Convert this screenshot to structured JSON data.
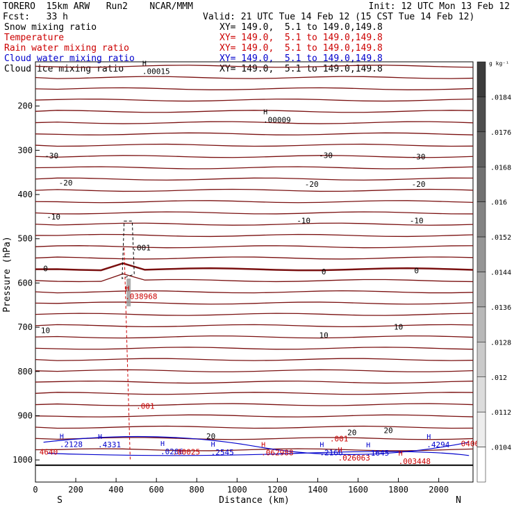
{
  "header": {
    "model": "TORERO  15km ARW   Run2    NCAR/MMM",
    "init": "Init: 12 UTC Mon 13 Feb 12",
    "fcst": "Fcst:   33 h",
    "valid": "Valid: 21 UTC Tue 14 Feb 12 (15 CST Tue 14 Feb 12)"
  },
  "fields": [
    {
      "name": "Snow mixing ratio",
      "xy": "XY= 149.0,  5.1 to 149.0,149.8",
      "color": "#000000"
    },
    {
      "name": "Temperature",
      "xy": "XY= 149.0,  5.1 to 149.0,149.8",
      "color": "#cc0000"
    },
    {
      "name": "Rain water mixing ratio",
      "xy": "XY= 149.0,  5.1 to 149.0,149.8",
      "color": "#cc0000"
    },
    {
      "name": "Cloud water mixing ratio",
      "xy": "XY= 149.0,  5.1 to 149.0,149.8",
      "color": "#0000cc"
    },
    {
      "name": "Cloud ice mixing ratio",
      "xy": "XY= 149.0,  5.1 to 149.0,149.8",
      "color": "#000000"
    }
  ],
  "colorbar": {
    "unit": "g kg⁻¹",
    "ticks": [
      ".0184",
      ".0176",
      ".0168",
      ".016",
      ".0152",
      ".0144",
      ".0136",
      ".0128",
      ".012",
      ".0112",
      ".0104"
    ]
  },
  "chart_data": {
    "type": "contour",
    "xlabel": "Distance (km)",
    "ylabel": "Pressure (hPa)",
    "xlim": [
      0,
      2170
    ],
    "ylim": [
      1050,
      100
    ],
    "x_ticks": [
      0,
      200,
      400,
      600,
      800,
      1000,
      1200,
      1400,
      1600,
      1800,
      2000
    ],
    "y_ticks": [
      200,
      300,
      400,
      500,
      600,
      700,
      800,
      900,
      1000
    ],
    "endpoints": {
      "left": "S",
      "right": "N"
    },
    "temperature_labels": [
      {
        "text": "-30",
        "x": 80,
        "p": 312
      },
      {
        "text": "-30",
        "x": 1440,
        "p": 311
      },
      {
        "text": "-30",
        "x": 1900,
        "p": 314
      },
      {
        "text": "-20",
        "x": 150,
        "p": 373
      },
      {
        "text": "-20",
        "x": 1370,
        "p": 376
      },
      {
        "text": "-20",
        "x": 1900,
        "p": 376
      },
      {
        "text": "-10",
        "x": 90,
        "p": 450
      },
      {
        "text": "-10",
        "x": 1330,
        "p": 459
      },
      {
        "text": "-10",
        "x": 1890,
        "p": 459
      },
      {
        "text": "0",
        "x": 50,
        "p": 567
      },
      {
        "text": "0",
        "x": 1430,
        "p": 574
      },
      {
        "text": "0",
        "x": 1890,
        "p": 572
      },
      {
        "text": "10",
        "x": 50,
        "p": 707
      },
      {
        "text": "10",
        "x": 1430,
        "p": 718
      },
      {
        "text": "10",
        "x": 1800,
        "p": 699
      },
      {
        "text": "20",
        "x": 870,
        "p": 946
      },
      {
        "text": "20",
        "x": 1570,
        "p": 938
      },
      {
        "text": "20",
        "x": 1750,
        "p": 933
      }
    ],
    "extrema": [
      {
        "text": "H",
        "val": ".00015",
        "x": 530,
        "p": 118,
        "color": "#000000"
      },
      {
        "text": "H",
        "val": ".00009",
        "x": 1130,
        "p": 228,
        "color": "#000000"
      },
      {
        "text": "H",
        "val": ".038968",
        "x": 445,
        "p": 627,
        "color": "#cc0000"
      },
      {
        "text": "H",
        "val": ".2128",
        "x": 120,
        "p": 961,
        "color": "#0000cc"
      },
      {
        "text": "H",
        "val": ".4331",
        "x": 310,
        "p": 962,
        "color": "#0000cc"
      },
      {
        "text": "H",
        "val": ".0206",
        "x": 620,
        "p": 978,
        "color": "#0000cc"
      },
      {
        "text": "H",
        "val": ".2545",
        "x": 870,
        "p": 979,
        "color": "#0000cc"
      },
      {
        "text": "H",
        "val": ".062988",
        "x": 1120,
        "p": 980,
        "color": "#cc0000"
      },
      {
        "text": "H",
        "val": ".2166",
        "x": 1410,
        "p": 980,
        "color": "#0000cc"
      },
      {
        "text": "H",
        "val": ".026063",
        "x": 1500,
        "p": 992,
        "color": "#cc0000"
      },
      {
        "text": "H",
        "val": ".1645",
        "x": 1640,
        "p": 981,
        "color": "#0000cc"
      },
      {
        "text": "H",
        "val": ".4294",
        "x": 1940,
        "p": 962,
        "color": "#0000cc"
      },
      {
        "text": "H",
        "val": ".003448",
        "x": 1800,
        "p": 1000,
        "color": "#cc0000"
      }
    ],
    "other_labels": [
      {
        "text": ".001",
        "x": 480,
        "p": 520,
        "color": "#000000"
      },
      {
        "text": ".001",
        "x": 500,
        "p": 878,
        "color": "#cc0000"
      },
      {
        "text": ".001",
        "x": 1460,
        "p": 952,
        "color": "#cc0000"
      },
      {
        "text": "4640",
        "x": 20,
        "p": 982,
        "color": "#cc0000"
      },
      {
        "text": "0406",
        "x": 2110,
        "p": 963,
        "color": "#cc0000"
      },
      {
        "text": ".00025",
        "x": 680,
        "p": 982,
        "color": "#cc0000"
      }
    ]
  }
}
